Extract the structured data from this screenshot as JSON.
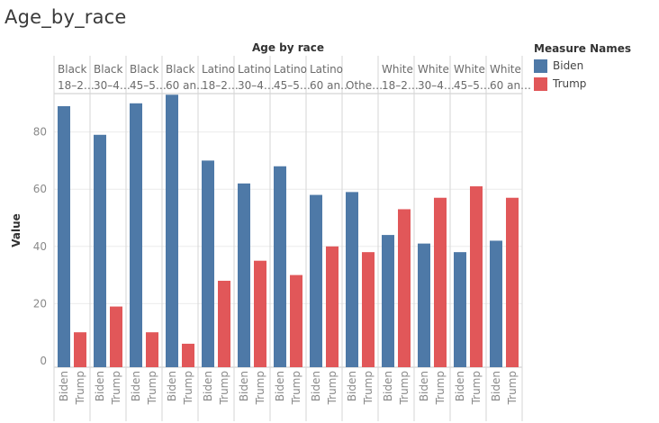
{
  "title": "Age_by_race",
  "chart_data": {
    "type": "bar",
    "title": "Age by race",
    "ylabel": "Value",
    "xlabel": "",
    "ylim": [
      0,
      95
    ],
    "y_ticks": [
      0,
      20,
      40,
      60,
      80
    ],
    "grid": true,
    "legend_position": "top-right",
    "legend_title": "Measure Names",
    "colors": {
      "Biden": "#4e79a7",
      "Trump": "#e15759"
    },
    "categories": [
      {
        "line1": "Black",
        "line2": "18–2…"
      },
      {
        "line1": "Black",
        "line2": "30–4…"
      },
      {
        "line1": "Black",
        "line2": "45–5…"
      },
      {
        "line1": "Black",
        "line2": "60 an…"
      },
      {
        "line1": "Latino",
        "line2": "18–2…"
      },
      {
        "line1": "Latino",
        "line2": "30–4…"
      },
      {
        "line1": "Latino",
        "line2": "45–5…"
      },
      {
        "line1": "Latino",
        "line2": "60 an…"
      },
      {
        "line1": "",
        "line2": "Othe…"
      },
      {
        "line1": "White",
        "line2": "18–2…"
      },
      {
        "line1": "White",
        "line2": "30–4…"
      },
      {
        "line1": "White",
        "line2": "45–5…"
      },
      {
        "line1": "White",
        "line2": "60 an…"
      }
    ],
    "series": [
      {
        "name": "Biden",
        "values": [
          89,
          79,
          90,
          93,
          70,
          62,
          68,
          58,
          59,
          44,
          41,
          38,
          42
        ]
      },
      {
        "name": "Trump",
        "values": [
          10,
          19,
          10,
          6,
          28,
          35,
          30,
          40,
          38,
          53,
          57,
          61,
          57
        ]
      }
    ]
  }
}
